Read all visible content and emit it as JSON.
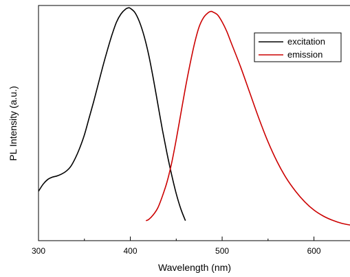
{
  "chart_data": {
    "type": "line",
    "title": "",
    "xlabel": "Wavelength (nm)",
    "ylabel": "PL Intensity (a.u.)",
    "xlim": [
      300,
      640
    ],
    "ylim": [
      0,
      1
    ],
    "x_ticks": [
      300,
      400,
      500,
      600
    ],
    "x_tick_labels": [
      "300",
      "400",
      "500",
      "600"
    ],
    "x_minor_ticks": [
      350,
      450,
      550
    ],
    "y_ticks_labeled": false,
    "grid": false,
    "legend": "top-right",
    "series": [
      {
        "name": "excitation",
        "color": "#000000",
        "x": [
          300,
          305,
          310,
          315,
          320,
          325,
          330,
          335,
          340,
          345,
          350,
          355,
          360,
          365,
          370,
          375,
          380,
          385,
          390,
          395,
          398,
          400,
          405,
          410,
          415,
          420,
          425,
          430,
          435,
          440,
          445,
          450,
          455,
          460
        ],
        "y": [
          0.21,
          0.24,
          0.26,
          0.27,
          0.275,
          0.283,
          0.295,
          0.315,
          0.35,
          0.395,
          0.45,
          0.52,
          0.59,
          0.665,
          0.74,
          0.81,
          0.875,
          0.93,
          0.965,
          0.985,
          0.99,
          0.988,
          0.97,
          0.93,
          0.87,
          0.79,
          0.69,
          0.58,
          0.47,
          0.37,
          0.28,
          0.2,
          0.135,
          0.085
        ]
      },
      {
        "name": "emission",
        "color": "#cc0000",
        "x": [
          417,
          420,
          425,
          430,
          435,
          440,
          445,
          450,
          455,
          460,
          465,
          470,
          475,
          480,
          485,
          488,
          490,
          495,
          500,
          505,
          510,
          520,
          530,
          540,
          550,
          560,
          570,
          580,
          590,
          600,
          610,
          620,
          630,
          640
        ],
        "y": [
          0.085,
          0.09,
          0.11,
          0.14,
          0.19,
          0.25,
          0.33,
          0.43,
          0.54,
          0.65,
          0.75,
          0.84,
          0.91,
          0.95,
          0.97,
          0.975,
          0.972,
          0.96,
          0.93,
          0.89,
          0.84,
          0.74,
          0.63,
          0.52,
          0.42,
          0.335,
          0.265,
          0.21,
          0.165,
          0.13,
          0.105,
          0.087,
          0.074,
          0.066
        ]
      }
    ]
  }
}
